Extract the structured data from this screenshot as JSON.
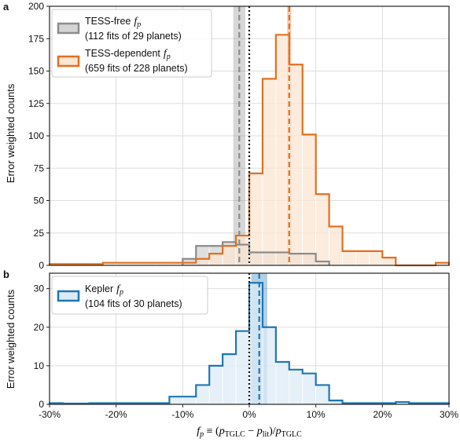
{
  "chart_data": [
    {
      "panel_label": "a",
      "type": "histogram",
      "ylabel": "Error weighted counts",
      "xlim": [
        -30,
        30
      ],
      "ylim": [
        0,
        200
      ],
      "yticks": [
        0,
        25,
        50,
        75,
        100,
        125,
        150,
        175,
        200
      ],
      "grid": true,
      "legend_position": "upper-left",
      "series": [
        {
          "name": "TESS-free",
          "name_math": "f",
          "name_math_sub": "p",
          "detail": "(112 fits of 29 planets)",
          "color": "#8c8c8c",
          "fill": "#d4d4d4",
          "bins": [
            [
              -10,
              -8,
              5
            ],
            [
              -8,
              -6,
              15
            ],
            [
              -6,
              -4,
              15
            ],
            [
              -4,
              -2,
              18
            ],
            [
              -2,
              0,
              16
            ],
            [
              0,
              2,
              10
            ],
            [
              2,
              4,
              10
            ],
            [
              4,
              6,
              10
            ],
            [
              6,
              8,
              9
            ],
            [
              8,
              10,
              9
            ],
            [
              10,
              12,
              3
            ]
          ],
          "median": -1.5,
          "median_band": [
            -2.4,
            -0.6
          ]
        },
        {
          "name": "TESS-dependent",
          "name_math": "f",
          "name_math_sub": "p",
          "detail": "(659 fits of 228 planets)",
          "color": "#e07020",
          "fill": "#fbe5d3",
          "bins": [
            [
              -30,
              -26,
              1
            ],
            [
              -26,
              -24,
              1
            ],
            [
              -24,
              -22,
              1
            ],
            [
              -22,
              -20,
              2
            ],
            [
              -20,
              -18,
              2
            ],
            [
              -18,
              -16,
              2
            ],
            [
              -16,
              -14,
              2
            ],
            [
              -14,
              -12,
              2
            ],
            [
              -12,
              -10,
              2
            ],
            [
              -10,
              -8,
              2
            ],
            [
              -8,
              -6,
              5
            ],
            [
              -6,
              -4,
              9
            ],
            [
              -4,
              -2,
              15
            ],
            [
              -2,
              0,
              23
            ],
            [
              0,
              2,
              71
            ],
            [
              2,
              4,
              144
            ],
            [
              4,
              6,
              178
            ],
            [
              6,
              8,
              155
            ],
            [
              8,
              10,
              101
            ],
            [
              10,
              12,
              55
            ],
            [
              12,
              14,
              30
            ],
            [
              14,
              16,
              11
            ],
            [
              16,
              18,
              11
            ],
            [
              18,
              20,
              11
            ],
            [
              20,
              22,
              6
            ],
            [
              22,
              24,
              0
            ],
            [
              24,
              26,
              0
            ],
            [
              26,
              28,
              0
            ],
            [
              28,
              30,
              2
            ]
          ],
          "median": 6.0,
          "median_band": [
            5.7,
            6.3
          ]
        }
      ],
      "reference_line": 0
    },
    {
      "panel_label": "b",
      "type": "histogram",
      "ylabel": "Error weighted counts",
      "xlabel": "f_p ≡ (p_TGLC − p_lit)/p_TGLC",
      "xlim": [
        -30,
        30
      ],
      "ylim": [
        0,
        34
      ],
      "yticks": [
        0,
        10,
        20,
        30
      ],
      "xticks": [
        -30,
        -20,
        -10,
        0,
        10,
        20,
        30
      ],
      "xtick_labels": [
        "-30%",
        "-20%",
        "-10%",
        "0%",
        "10%",
        "20%",
        "30%"
      ],
      "grid": true,
      "legend_position": "upper-left",
      "series": [
        {
          "name": "Kepler",
          "name_math": "f",
          "name_math_sub": "p",
          "detail": "(104 fits of 30 planets)",
          "color": "#1f77b4",
          "fill": "#dcebf5",
          "bins": [
            [
              -30,
              -28,
              0.3
            ],
            [
              -28,
              -24,
              0.2
            ],
            [
              -24,
              -20,
              0.3
            ],
            [
              -20,
              -16,
              0.3
            ],
            [
              -16,
              -12,
              0.3
            ],
            [
              -12,
              -10,
              2
            ],
            [
              -10,
              -8,
              2
            ],
            [
              -8,
              -6,
              5
            ],
            [
              -6,
              -4,
              10
            ],
            [
              -4,
              -2,
              13
            ],
            [
              -2,
              0,
              19
            ],
            [
              0,
              2,
              31.5
            ],
            [
              2,
              4,
              20
            ],
            [
              4,
              6,
              11
            ],
            [
              6,
              8,
              9
            ],
            [
              8,
              10,
              8
            ],
            [
              10,
              12,
              5
            ],
            [
              12,
              14,
              1
            ],
            [
              14,
              16,
              0.3
            ],
            [
              16,
              18,
              0.3
            ],
            [
              18,
              20,
              0.3
            ],
            [
              20,
              22,
              0.3
            ],
            [
              22,
              24,
              0.6
            ],
            [
              24,
              26,
              0.3
            ],
            [
              26,
              28,
              0.3
            ],
            [
              28,
              30,
              0.3
            ]
          ],
          "median": 1.5,
          "median_band": [
            0.3,
            2.7
          ]
        }
      ],
      "reference_line": 0
    }
  ]
}
